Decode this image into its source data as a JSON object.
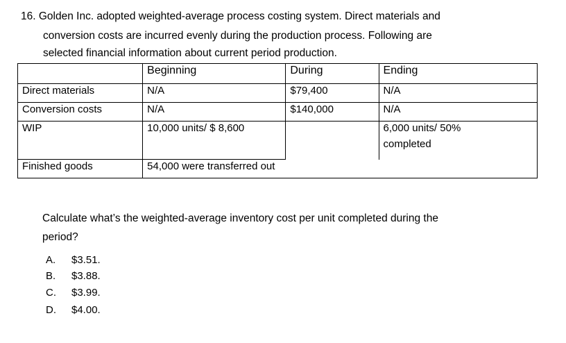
{
  "question": {
    "lines": [
      "16. Golden Inc. adopted weighted-average process costing system. Direct materials and",
      "conversion costs are incurred evenly during the production process. Following are",
      "selected financial information about current period production."
    ]
  },
  "table": {
    "headers": [
      "",
      "Beginning",
      "During",
      "Ending"
    ],
    "rows": [
      {
        "label": "Direct materials",
        "beginning": "N/A",
        "during": "$79,400",
        "ending": "N/A"
      },
      {
        "label": "Conversion costs",
        "beginning": "N/A",
        "during": "$140,000",
        "ending": "N/A"
      },
      {
        "label": "WIP",
        "beginning": "10,000 units/ $ 8,600",
        "during": "",
        "ending_line1": "6,000 units/ 50%",
        "ending_line2": "completed"
      },
      {
        "label": "Finished goods",
        "beginning": "54,000 were transferred out"
      }
    ]
  },
  "prompt": {
    "line1": "Calculate what’s the weighted-average inventory cost per unit completed during the",
    "line2": "period?"
  },
  "options": [
    {
      "letter": "A.",
      "text": "$3.51."
    },
    {
      "letter": "B.",
      "text": "$3.88."
    },
    {
      "letter": "C.",
      "text": "$3.99."
    },
    {
      "letter": "D.",
      "text": "$4.00."
    }
  ]
}
